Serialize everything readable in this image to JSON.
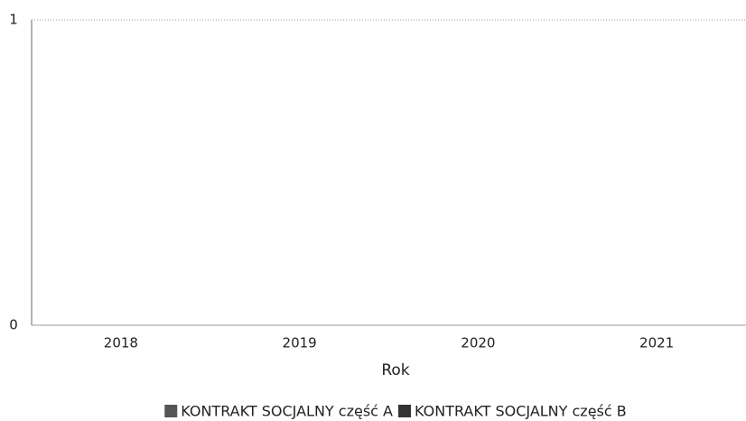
{
  "chart_data": {
    "type": "bar",
    "x_label": "Rok",
    "categories": [
      "2018",
      "2019",
      "2020",
      "2021"
    ],
    "series": [
      {
        "name": "KONTRAKT SOCJALNY część A",
        "color": "#555555",
        "values": [
          0,
          0,
          0,
          0
        ]
      },
      {
        "name": "KONTRAKT SOCJALNY część B",
        "color": "#333333",
        "values": [
          0,
          0,
          0,
          0
        ]
      }
    ],
    "ylim": [
      0,
      1
    ],
    "yticks": [
      0,
      1
    ],
    "grid": true,
    "legend": "bottom"
  }
}
